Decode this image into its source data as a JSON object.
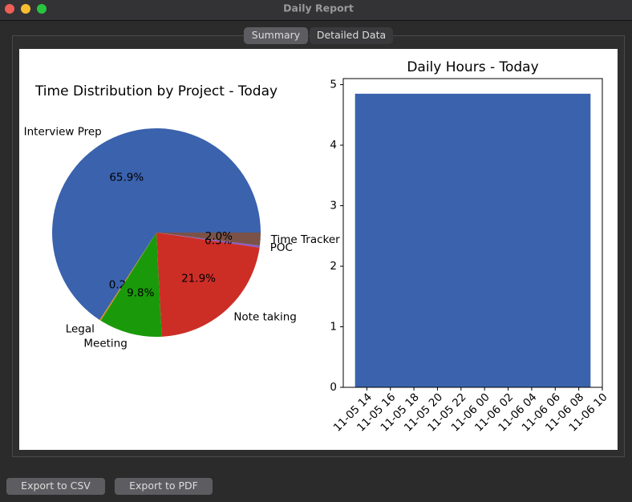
{
  "window": {
    "title": "Daily Report"
  },
  "tabs": [
    "Summary",
    "Detailed Data"
  ],
  "buttons": [
    "Export to CSV",
    "Export to PDF"
  ],
  "chart_data": [
    {
      "type": "pie",
      "title": "Time Distribution by Project - Today",
      "categories": [
        "Interview Prep",
        "Legal",
        "Meeting",
        "Note taking",
        "POC",
        "Time Tracker"
      ],
      "values": [
        65.9,
        0.2,
        9.8,
        21.9,
        0.3,
        2.0
      ],
      "value_labels": [
        "65.9%",
        "0.2%",
        "9.8%",
        "21.9%",
        "0.3%",
        "2.0%"
      ],
      "colors": [
        "#3a62ad",
        "#e08a1e",
        "#1a9a0a",
        "#cc2e26",
        "#8a5cc4",
        "#7a5248"
      ]
    },
    {
      "type": "histogram",
      "title": "Daily Hours - Today",
      "bins": [
        "11-05 13",
        "11-06 09"
      ],
      "values": [
        4.85
      ],
      "color": "#3a62ad",
      "xlim": [
        "11-05 12",
        "11-06 10"
      ],
      "xticks": [
        "11-05 14",
        "11-05 16",
        "11-05 18",
        "11-05 20",
        "11-05 22",
        "11-06 00",
        "11-06 02",
        "11-06 04",
        "11-06 06",
        "11-06 08",
        "11-06 10"
      ],
      "ylim": [
        0,
        5.1
      ],
      "yticks": [
        0,
        1,
        2,
        3,
        4,
        5
      ]
    }
  ]
}
